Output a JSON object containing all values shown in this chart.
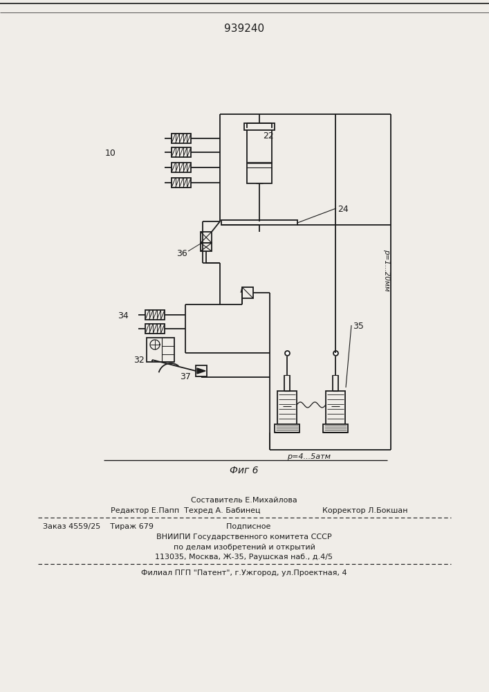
{
  "title": "939240",
  "fig_label": "Фиг 6",
  "bg": "#f0ede8",
  "lc": "#1a1a1a",
  "composer": "Составитель Е.Михайлова",
  "editor_left": "Редактор Е.Папп  Техред А. Бабинец",
  "corrector": "Корректор Л.Бокшан",
  "order": "Заказ 4559/25    Тираж 679                              Подписное",
  "org1": "ВНИИПИ Государственного комитета СССР",
  "org2": "по делам изобретений и открытий",
  "org3": "113035, Москва, Ж-35, Раушская наб., д.4/5",
  "affiliate": "Филиал ПГП \"Патент\", г.Ужгород, ул.Проектная, 4",
  "label_p1": "р=1...20мм",
  "label_p2": "р=4...5атм"
}
